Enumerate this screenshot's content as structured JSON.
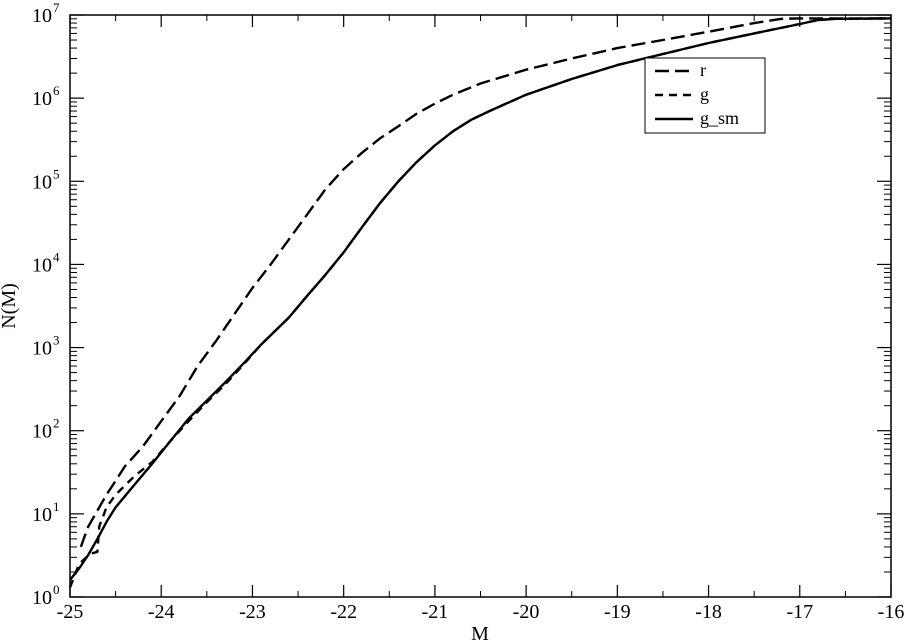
{
  "chart_data": {
    "type": "line",
    "title": "",
    "xlabel": "M",
    "ylabel": "N(M)",
    "xlim": [
      -25,
      -16
    ],
    "ylim": [
      1,
      10000000
    ],
    "yscale": "log",
    "grid": false,
    "legend_position": "top-right",
    "x_ticks": [
      "-25",
      "-24",
      "-23",
      "-22",
      "-21",
      "-20",
      "-19",
      "-18",
      "-17",
      "-16"
    ],
    "y_ticks": [
      {
        "base": "10",
        "exp": "0"
      },
      {
        "base": "10",
        "exp": "1"
      },
      {
        "base": "10",
        "exp": "2"
      },
      {
        "base": "10",
        "exp": "3"
      },
      {
        "base": "10",
        "exp": "4"
      },
      {
        "base": "10",
        "exp": "5"
      },
      {
        "base": "10",
        "exp": "6"
      },
      {
        "base": "10",
        "exp": "7"
      }
    ],
    "series": [
      {
        "name": "r",
        "style": "long-dash",
        "points": [
          [
            -24.88,
            4
          ],
          [
            -24.85,
            5
          ],
          [
            -24.8,
            7
          ],
          [
            -24.72,
            10
          ],
          [
            -24.6,
            17
          ],
          [
            -24.5,
            25
          ],
          [
            -24.4,
            37
          ],
          [
            -24.2,
            65
          ],
          [
            -24.0,
            130
          ],
          [
            -23.8,
            260
          ],
          [
            -23.6,
            600
          ],
          [
            -23.4,
            1200
          ],
          [
            -23.2,
            2500
          ],
          [
            -23.0,
            5200
          ],
          [
            -22.8,
            10000
          ],
          [
            -22.6,
            20000
          ],
          [
            -22.4,
            40000
          ],
          [
            -22.2,
            80000
          ],
          [
            -22.0,
            140000
          ],
          [
            -21.8,
            220000
          ],
          [
            -21.6,
            330000
          ],
          [
            -21.4,
            460000
          ],
          [
            -21.2,
            650000
          ],
          [
            -21.0,
            860000
          ],
          [
            -20.8,
            1100000
          ],
          [
            -20.5,
            1500000
          ],
          [
            -20.0,
            2200000
          ],
          [
            -19.5,
            3000000
          ],
          [
            -19.0,
            4000000
          ],
          [
            -18.5,
            5000000
          ],
          [
            -18.0,
            6300000
          ],
          [
            -17.5,
            8000000
          ],
          [
            -17.2,
            9000000
          ],
          [
            -17.0,
            9100000
          ],
          [
            -16.0,
            9100000
          ]
        ]
      },
      {
        "name": "g",
        "style": "short-dash",
        "points": [
          [
            -25.0,
            1.3
          ],
          [
            -24.9,
            2.5
          ],
          [
            -24.78,
            3.3
          ],
          [
            -24.7,
            3.5
          ],
          [
            -24.68,
            7
          ],
          [
            -24.6,
            12
          ],
          [
            -24.5,
            17
          ],
          [
            -24.3,
            28
          ],
          [
            -24.1,
            42
          ],
          [
            -23.9,
            75
          ],
          [
            -23.7,
            130
          ],
          [
            -23.5,
            220
          ],
          [
            -23.3,
            360
          ],
          [
            -23.1,
            620
          ],
          [
            -22.9,
            1100
          ],
          [
            -22.6,
            2300
          ],
          [
            -22.4,
            4200
          ],
          [
            -22.2,
            7500
          ],
          [
            -22.0,
            14000
          ],
          [
            -21.8,
            28000
          ],
          [
            -21.6,
            55000
          ],
          [
            -21.4,
            100000
          ],
          [
            -21.2,
            170000
          ],
          [
            -21.0,
            270000
          ],
          [
            -20.8,
            400000
          ],
          [
            -20.6,
            550000
          ],
          [
            -20.4,
            700000
          ],
          [
            -20.0,
            1100000
          ],
          [
            -19.5,
            1700000
          ],
          [
            -19.0,
            2500000
          ],
          [
            -18.5,
            3400000
          ],
          [
            -18.0,
            4600000
          ],
          [
            -17.5,
            6000000
          ],
          [
            -17.0,
            7800000
          ],
          [
            -16.8,
            8700000
          ],
          [
            -16.6,
            9000000
          ],
          [
            -16.0,
            9100000
          ]
        ]
      },
      {
        "name": "g_sm",
        "style": "solid",
        "points": [
          [
            -25.0,
            1.6
          ],
          [
            -24.9,
            2.2
          ],
          [
            -24.8,
            3.2
          ],
          [
            -24.7,
            5
          ],
          [
            -24.6,
            8
          ],
          [
            -24.5,
            12
          ],
          [
            -24.3,
            22
          ],
          [
            -24.1,
            40
          ],
          [
            -23.9,
            75
          ],
          [
            -23.7,
            140
          ],
          [
            -23.5,
            230
          ],
          [
            -23.3,
            380
          ],
          [
            -23.1,
            640
          ],
          [
            -22.9,
            1100
          ],
          [
            -22.6,
            2300
          ],
          [
            -22.4,
            4200
          ],
          [
            -22.2,
            7500
          ],
          [
            -22.0,
            14000
          ],
          [
            -21.8,
            28000
          ],
          [
            -21.6,
            55000
          ],
          [
            -21.4,
            100000
          ],
          [
            -21.2,
            170000
          ],
          [
            -21.0,
            270000
          ],
          [
            -20.8,
            400000
          ],
          [
            -20.6,
            550000
          ],
          [
            -20.4,
            700000
          ],
          [
            -20.0,
            1100000
          ],
          [
            -19.5,
            1700000
          ],
          [
            -19.0,
            2500000
          ],
          [
            -18.5,
            3400000
          ],
          [
            -18.0,
            4600000
          ],
          [
            -17.5,
            6000000
          ],
          [
            -17.0,
            7800000
          ],
          [
            -16.8,
            8700000
          ],
          [
            -16.6,
            9000000
          ],
          [
            -16.0,
            9100000
          ]
        ]
      }
    ]
  }
}
